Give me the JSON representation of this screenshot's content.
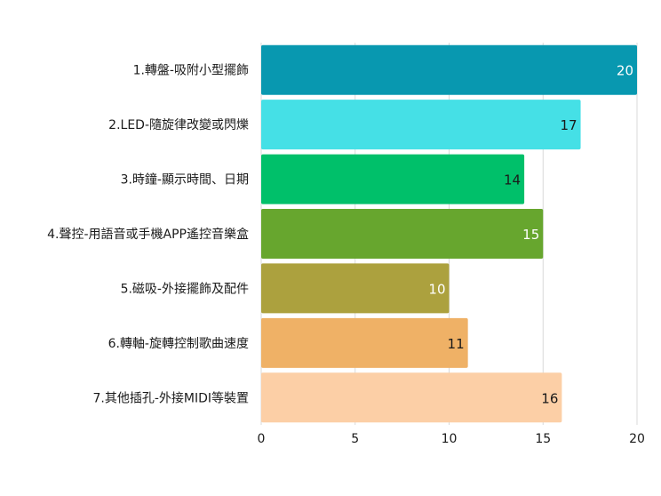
{
  "chart_data": {
    "type": "bar",
    "orientation": "horizontal",
    "categories": [
      "1.轉盤-吸附小型擺飾",
      "2.LED-隨旋律改變或閃爍",
      "3.時鐘-顯示時間、日期",
      "4.聲控-用語音或手機APP遙控音樂盒",
      "5.磁吸-外接擺飾及配件",
      "6.轉軸-旋轉控制歌曲速度",
      "7.其他插孔-外接MIDI等裝置"
    ],
    "values": [
      20,
      17,
      14,
      15,
      10,
      11,
      16
    ],
    "colors": [
      "#0898b0",
      "#45e0e6",
      "#00c06a",
      "#67a62e",
      "#aca13e",
      "#efb166",
      "#fccfa6"
    ],
    "label_colors": [
      "#ffffff",
      "#1a1a1a",
      "#1a1a1a",
      "#ffffff",
      "#ffffff",
      "#1a1a1a",
      "#1a1a1a"
    ],
    "xlim": [
      0,
      20
    ],
    "xticks": [
      0,
      5,
      10,
      15,
      20
    ],
    "grid": true,
    "gridline_color": "#d9d9d9",
    "title": "",
    "xlabel": "",
    "ylabel": ""
  }
}
